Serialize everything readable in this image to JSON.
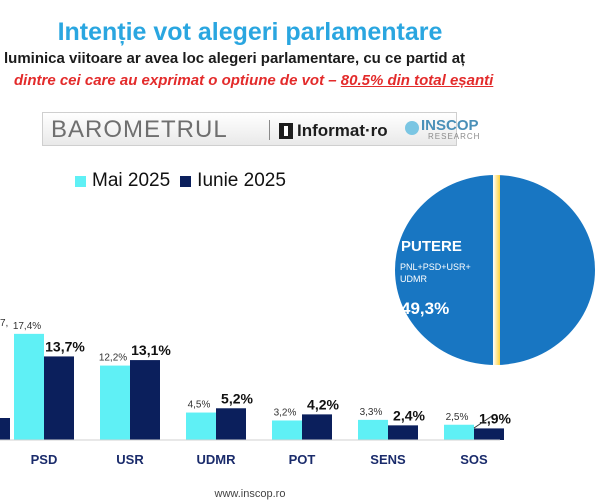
{
  "header": {
    "title": "Intenție vot alegeri parlamentare",
    "subtitle_line1": "luminica viitoare ar avea loc alegeri parlamentare, cu ce partid aț",
    "subtitle_line2_prefix": "dintre cei care au exprimat o optiune de vot – ",
    "subtitle_line2_emphasis": "80.5% din total eșanti"
  },
  "banner": {
    "brand": "BAROMETRUL",
    "partner": "Informat·ro",
    "pollster": "INSCOP",
    "pollster_tagline": "RESEARCH"
  },
  "colors": {
    "series_may": "#5ff0f5",
    "series_june": "#0b1f5c",
    "title": "#2aa6e0",
    "emphasis": "#e32b2b",
    "pie_putere": "#1876c2",
    "pie_other": "#ffd23a"
  },
  "chart_data": {
    "type": "bar",
    "categories": [
      "PSD",
      "USR",
      "UDMR",
      "POT",
      "SENS",
      "SOS"
    ],
    "series": [
      {
        "name": "Mai 2025",
        "values": [
          17.4,
          12.2,
          4.5,
          3.2,
          3.3,
          2.5
        ],
        "labels": [
          "17,4%",
          "12,2%",
          "4,5%",
          "3,2%",
          "3,3%",
          "2,5%"
        ]
      },
      {
        "name": "Iunie 2025",
        "values": [
          13.7,
          13.1,
          5.2,
          4.2,
          2.4,
          1.9
        ],
        "labels": [
          "13,7%",
          "13,1%",
          "5,2%",
          "4,2%",
          "2,4%",
          "1,9%"
        ]
      }
    ],
    "cut_left_label": "7,",
    "grid": false,
    "legend_position": "top-left"
  },
  "pie": {
    "segment_name": "PUTERE",
    "segment_parties": "PNL+PSD+USR+ UDMR",
    "segment_value": "49,3%",
    "segment_fraction": 0.493
  },
  "footer": {
    "url": "www.inscop.ro"
  }
}
